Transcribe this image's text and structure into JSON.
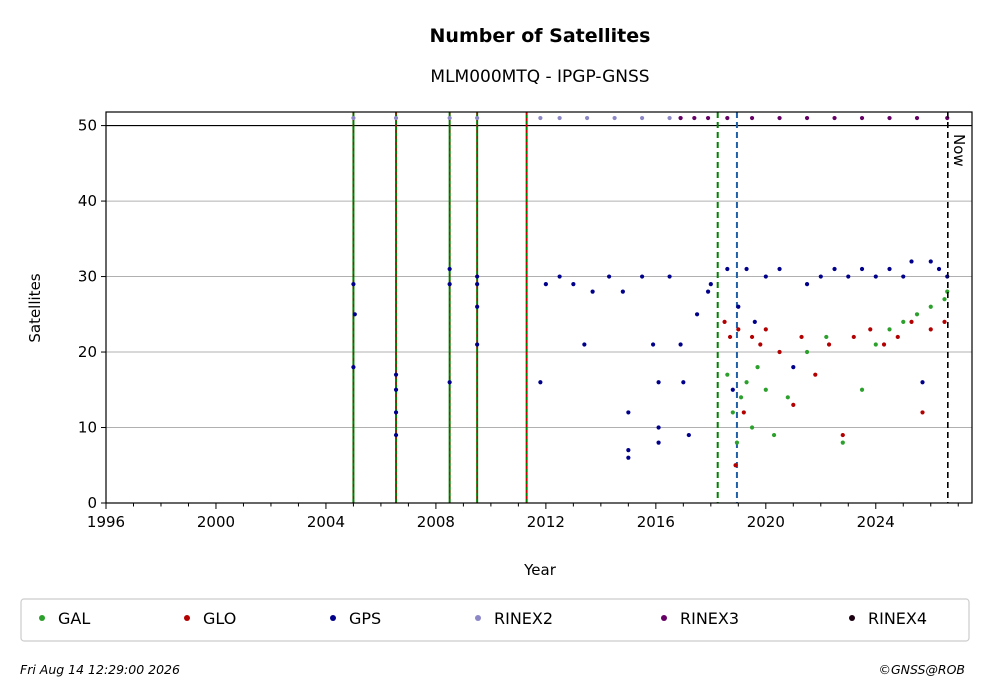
{
  "chart_data": {
    "type": "scatter",
    "title": "Number of Satellites",
    "subtitle": "MLM000MTQ - IPGP-GNSS",
    "xlabel": "Year",
    "ylabel": "Satellites",
    "xlim": [
      1996,
      2027.5
    ],
    "ylim": [
      0,
      51.8
    ],
    "x_ticks": [
      "1996",
      "2000",
      "2004",
      "2008",
      "2012",
      "2016",
      "2020",
      "2024"
    ],
    "y_ticks": [
      "0",
      "10",
      "20",
      "30",
      "40",
      "50"
    ],
    "grid": "horizontal",
    "now_label": "Now",
    "now_date": 2026.62,
    "ceiling_line": 50,
    "legend_position": "bottom",
    "series": [
      {
        "name": "GAL",
        "color": "#2ca02c",
        "points": [
          [
            2018.6,
            17
          ],
          [
            2018.8,
            12
          ],
          [
            2018.95,
            8
          ],
          [
            2019.1,
            14
          ],
          [
            2019.3,
            16
          ],
          [
            2019.5,
            10
          ],
          [
            2019.7,
            18
          ],
          [
            2020.0,
            15
          ],
          [
            2020.3,
            9
          ],
          [
            2020.8,
            14
          ],
          [
            2021.5,
            20
          ],
          [
            2022.2,
            22
          ],
          [
            2022.8,
            8
          ],
          [
            2023.5,
            15
          ],
          [
            2024.0,
            21
          ],
          [
            2024.5,
            23
          ],
          [
            2025.0,
            24
          ],
          [
            2025.5,
            25
          ],
          [
            2026.0,
            26
          ],
          [
            2026.5,
            27
          ],
          [
            2026.6,
            28
          ]
        ]
      },
      {
        "name": "GLO",
        "color": "#b30000",
        "points": [
          [
            2018.5,
            24
          ],
          [
            2018.7,
            22
          ],
          [
            2018.9,
            5
          ],
          [
            2019.0,
            23
          ],
          [
            2019.2,
            12
          ],
          [
            2019.5,
            22
          ],
          [
            2019.8,
            21
          ],
          [
            2020.0,
            23
          ],
          [
            2020.5,
            20
          ],
          [
            2021.0,
            13
          ],
          [
            2021.3,
            22
          ],
          [
            2021.8,
            17
          ],
          [
            2022.3,
            21
          ],
          [
            2022.8,
            9
          ],
          [
            2023.2,
            22
          ],
          [
            2023.8,
            23
          ],
          [
            2024.3,
            21
          ],
          [
            2024.8,
            22
          ],
          [
            2025.3,
            24
          ],
          [
            2025.7,
            12
          ],
          [
            2026.0,
            23
          ],
          [
            2026.5,
            24
          ]
        ]
      },
      {
        "name": "GPS",
        "color": "#00008b",
        "points": [
          [
            2005.0,
            29
          ],
          [
            2005.05,
            25
          ],
          [
            2005.0,
            18
          ],
          [
            2006.55,
            17
          ],
          [
            2006.55,
            15
          ],
          [
            2006.55,
            12
          ],
          [
            2006.55,
            9
          ],
          [
            2008.5,
            31
          ],
          [
            2008.5,
            29
          ],
          [
            2008.5,
            16
          ],
          [
            2009.5,
            30
          ],
          [
            2009.5,
            29
          ],
          [
            2009.5,
            26
          ],
          [
            2009.5,
            21
          ],
          [
            2011.8,
            16
          ],
          [
            2012.0,
            29
          ],
          [
            2012.5,
            30
          ],
          [
            2013.0,
            29
          ],
          [
            2013.4,
            21
          ],
          [
            2013.7,
            28
          ],
          [
            2014.3,
            30
          ],
          [
            2014.8,
            28
          ],
          [
            2015.0,
            12
          ],
          [
            2015.0,
            7
          ],
          [
            2015.0,
            6
          ],
          [
            2015.5,
            30
          ],
          [
            2015.9,
            21
          ],
          [
            2016.1,
            16
          ],
          [
            2016.1,
            10
          ],
          [
            2016.1,
            8
          ],
          [
            2016.5,
            30
          ],
          [
            2016.9,
            21
          ],
          [
            2017.0,
            16
          ],
          [
            2017.2,
            9
          ],
          [
            2017.5,
            25
          ],
          [
            2017.9,
            28
          ],
          [
            2018.0,
            29
          ],
          [
            2018.6,
            31
          ],
          [
            2018.8,
            15
          ],
          [
            2019.0,
            26
          ],
          [
            2019.3,
            31
          ],
          [
            2019.6,
            24
          ],
          [
            2020.0,
            30
          ],
          [
            2020.5,
            31
          ],
          [
            2021.0,
            18
          ],
          [
            2021.5,
            29
          ],
          [
            2022.0,
            30
          ],
          [
            2022.5,
            31
          ],
          [
            2023.0,
            30
          ],
          [
            2023.5,
            31
          ],
          [
            2024.0,
            30
          ],
          [
            2024.5,
            31
          ],
          [
            2025.0,
            30
          ],
          [
            2025.3,
            32
          ],
          [
            2025.7,
            16
          ],
          [
            2026.0,
            32
          ],
          [
            2026.3,
            31
          ],
          [
            2026.6,
            30
          ]
        ]
      },
      {
        "name": "RINEX2",
        "color": "#8c87c6",
        "points": [
          [
            2005.0,
            51
          ],
          [
            2006.55,
            51
          ],
          [
            2008.5,
            51
          ],
          [
            2009.5,
            51
          ],
          [
            2011.8,
            51
          ],
          [
            2012.5,
            51
          ],
          [
            2013.5,
            51
          ],
          [
            2014.5,
            51
          ],
          [
            2015.5,
            51
          ],
          [
            2016.5,
            51
          ],
          [
            2016.9,
            51
          ]
        ]
      },
      {
        "name": "RINEX3",
        "color": "#660066",
        "points": [
          [
            2016.9,
            51
          ],
          [
            2017.4,
            51
          ],
          [
            2017.9,
            51
          ],
          [
            2018.6,
            51
          ],
          [
            2019.5,
            51
          ],
          [
            2020.5,
            51
          ],
          [
            2021.5,
            51
          ],
          [
            2022.5,
            51
          ],
          [
            2023.5,
            51
          ],
          [
            2024.5,
            51
          ],
          [
            2025.5,
            51
          ],
          [
            2026.6,
            51
          ]
        ]
      },
      {
        "name": "RINEX4",
        "color": "#1a0010",
        "points": []
      }
    ],
    "vertical_lines": [
      {
        "x": 2005.0,
        "style": "red-green"
      },
      {
        "x": 2006.55,
        "style": "red-green"
      },
      {
        "x": 2008.5,
        "style": "red-green"
      },
      {
        "x": 2009.5,
        "style": "red-green"
      },
      {
        "x": 2011.3,
        "style": "red-green"
      },
      {
        "x": 2018.25,
        "style": "green-dashed"
      },
      {
        "x": 2018.95,
        "style": "blue-dashed"
      }
    ]
  },
  "footer": {
    "timestamp": "Fri Aug 14 12:29:00 2026",
    "credit": "©GNSS@ROB"
  }
}
